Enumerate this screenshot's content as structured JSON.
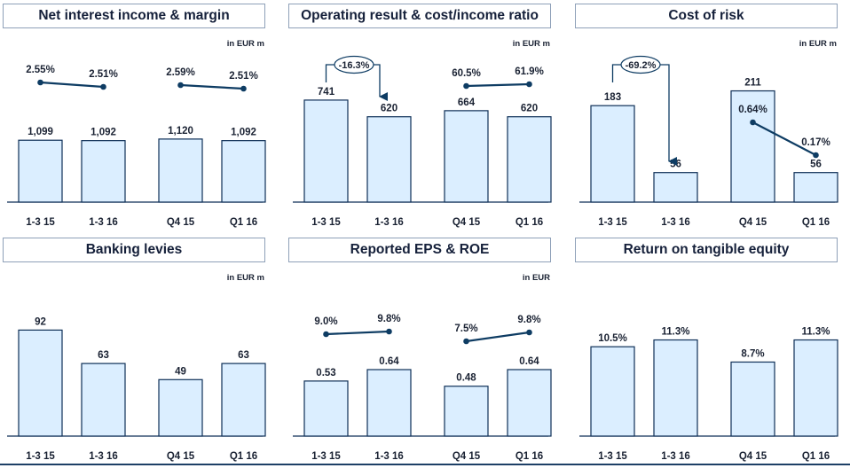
{
  "colors": {
    "bar_fill": "#dbeeff",
    "bar_stroke": "#0e2f57",
    "line": "#0e3c63",
    "text": "#1a2233",
    "title_border": "#8ea0b8"
  },
  "chart_data": [
    {
      "type": "bar",
      "title": "Net interest income & margin",
      "unit": "in EUR m",
      "categories": [
        "1-3 15",
        "1-3 16",
        "Q4 15",
        "Q1 16"
      ],
      "values": [
        1099,
        1092,
        1120,
        1092
      ],
      "labels": [
        "1,099",
        "1,092",
        "1,120",
        "1,092"
      ],
      "overlay": {
        "type": "line",
        "values": [
          2.55,
          2.51,
          2.59,
          2.51
        ],
        "labels": [
          "2.55%",
          "2.51%",
          "2.59%",
          "2.51%"
        ],
        "pairs": [
          [
            0,
            1
          ],
          [
            2,
            3
          ]
        ]
      }
    },
    {
      "type": "bar",
      "title": "Operating result & cost/income ratio",
      "unit": "in EUR m",
      "categories": [
        "1-3 15",
        "1-3 16",
        "Q4 15",
        "Q1 16"
      ],
      "values": [
        741,
        620,
        664,
        620
      ],
      "labels": [
        "741",
        "620",
        "664",
        "620"
      ],
      "change_callout": {
        "label": "-16.3%",
        "from": 0,
        "to": 1
      },
      "overlay": {
        "type": "line",
        "values": [
          null,
          null,
          60.5,
          61.9
        ],
        "labels": [
          "",
          "",
          "60.5%",
          "61.9%"
        ],
        "pairs": [
          [
            2,
            3
          ]
        ]
      }
    },
    {
      "type": "bar",
      "title": "Cost of risk",
      "unit": "in EUR m",
      "categories": [
        "1-3 15",
        "1-3 16",
        "Q4 15",
        "Q1 16"
      ],
      "values": [
        183,
        56,
        211,
        56
      ],
      "labels": [
        "183",
        "56",
        "211",
        "56"
      ],
      "change_callout": {
        "label": "-69.2%",
        "from": 0,
        "to": 1
      },
      "overlay": {
        "type": "line",
        "values": [
          null,
          null,
          0.64,
          0.17
        ],
        "labels": [
          "",
          "",
          "0.64%",
          "0.17%"
        ],
        "pairs": [
          [
            2,
            3
          ]
        ]
      }
    },
    {
      "type": "bar",
      "title": "Banking levies",
      "unit": "in EUR m",
      "categories": [
        "1-3 15",
        "1-3 16",
        "Q4 15",
        "Q1 16"
      ],
      "values": [
        92,
        63,
        49,
        63
      ],
      "labels": [
        "92",
        "63",
        "49",
        "63"
      ]
    },
    {
      "type": "bar",
      "title": "Reported EPS & ROE",
      "unit": "in EUR",
      "categories": [
        "1-3 15",
        "1-3 16",
        "Q4 15",
        "Q1 16"
      ],
      "values": [
        0.53,
        0.64,
        0.48,
        0.64
      ],
      "labels": [
        "0.53",
        "0.64",
        "0.48",
        "0.64"
      ],
      "overlay": {
        "type": "line",
        "values": [
          9.0,
          9.8,
          7.5,
          9.8
        ],
        "labels": [
          "9.0%",
          "9.8%",
          "7.5%",
          "9.8%"
        ],
        "pairs": [
          [
            0,
            1
          ],
          [
            2,
            3
          ]
        ]
      }
    },
    {
      "type": "bar",
      "title": "Return on tangible equity",
      "unit": "",
      "categories": [
        "1-3 15",
        "1-3 16",
        "Q4 15",
        "Q1 16"
      ],
      "values": [
        10.5,
        11.3,
        8.7,
        11.3
      ],
      "labels": [
        "10.5%",
        "11.3%",
        "8.7%",
        "11.3%"
      ]
    }
  ]
}
